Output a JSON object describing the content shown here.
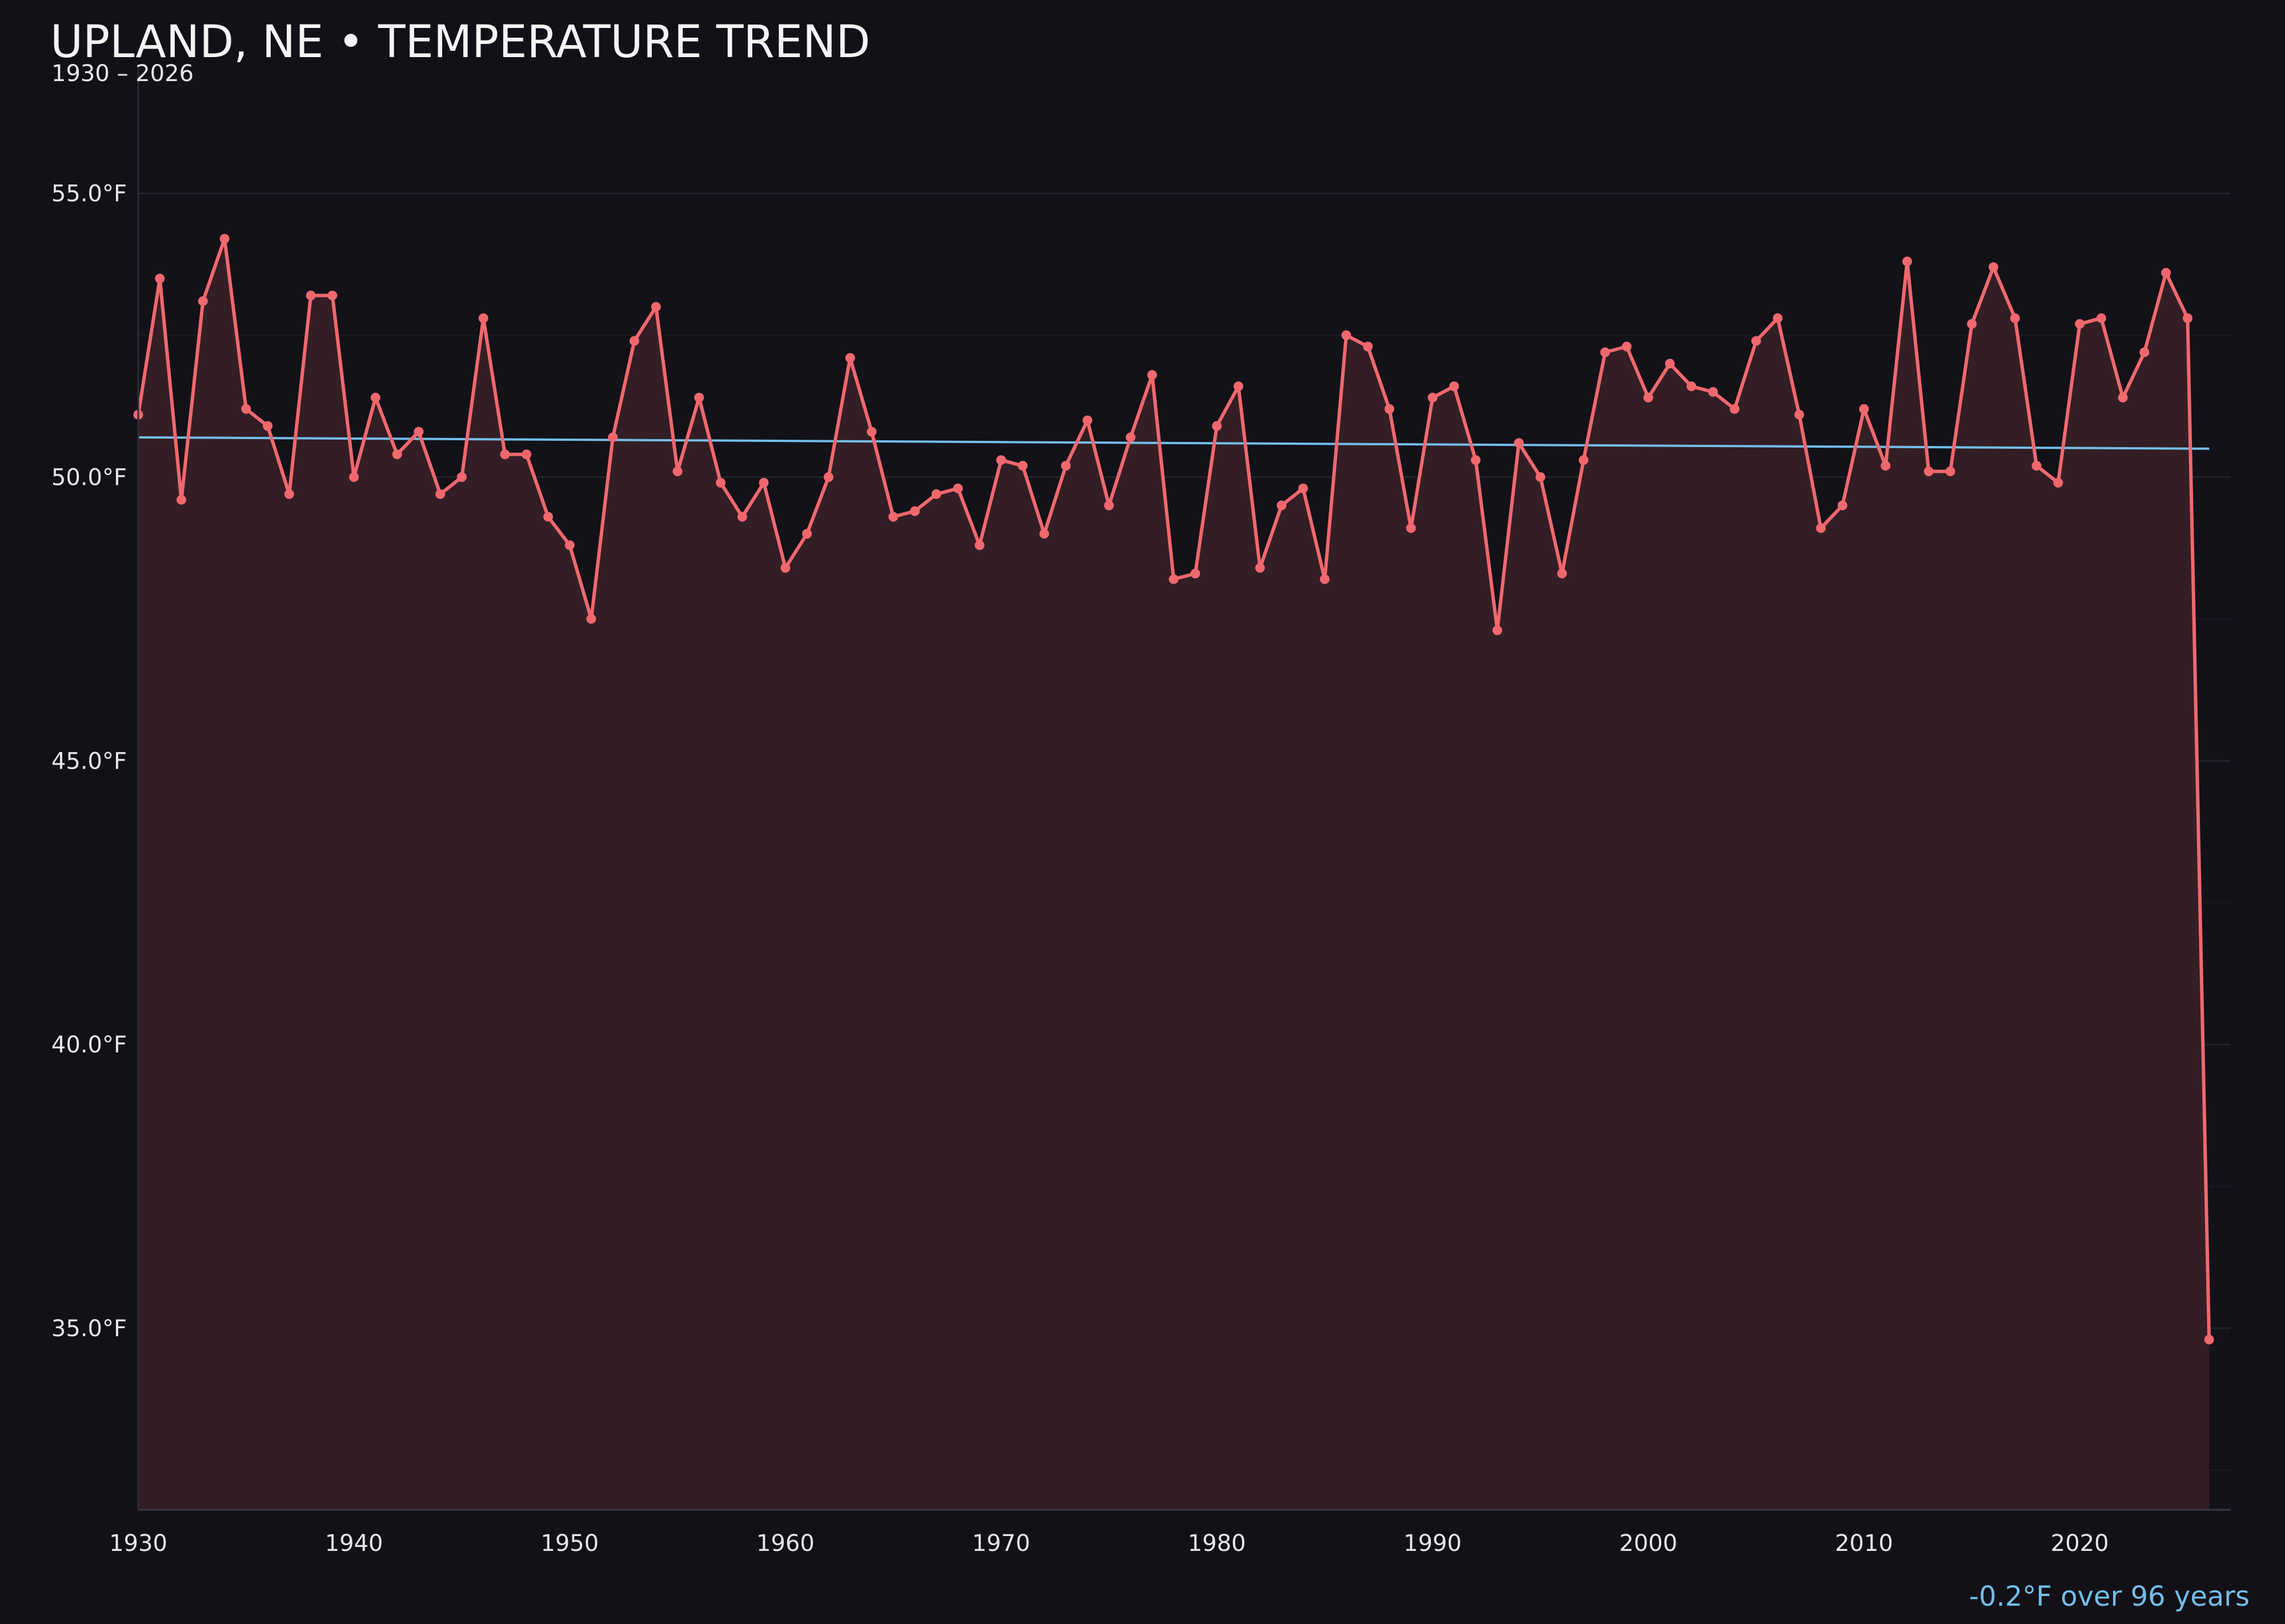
{
  "colors": {
    "background": "#121117",
    "plot_background": "#131219",
    "line": "#f0686e",
    "fill": "#341e25",
    "trend": "#74bde8",
    "grid": "#24222a"
  },
  "chart_data": {
    "type": "line",
    "title": "UPLAND, NE • TEMPERATURE TREND",
    "subtitle": "1930 – 2026",
    "xlabel": "",
    "ylabel": "",
    "xlim": [
      1930,
      2027
    ],
    "ylim": [
      31.8,
      57.2
    ],
    "x_ticks": [
      1930,
      1940,
      1950,
      1960,
      1970,
      1980,
      1990,
      2000,
      2010,
      2020
    ],
    "x_tick_labels": [
      "1930",
      "1940",
      "1950",
      "1960",
      "1970",
      "1980",
      "1990",
      "2000",
      "2010",
      "2020"
    ],
    "y_ticks": [
      35,
      40,
      45,
      50,
      55
    ],
    "y_tick_labels": [
      "35.0°F",
      "40.0°F",
      "45.0°F",
      "50.0°F",
      "55.0°F"
    ],
    "grid": true,
    "series": [
      {
        "x": [
          1930,
          1931,
          1932,
          1933,
          1934,
          1935,
          1936,
          1937,
          1938,
          1939,
          1940,
          1941,
          1942,
          1943,
          1944,
          1945,
          1946,
          1947,
          1948,
          1949,
          1950,
          1951,
          1952,
          1953,
          1954,
          1955,
          1956,
          1957,
          1958,
          1959,
          1960,
          1961,
          1962,
          1963,
          1964,
          1965,
          1966,
          1967,
          1968,
          1969,
          1970,
          1971,
          1972,
          1973,
          1974,
          1975,
          1976,
          1977,
          1978,
          1979,
          1980,
          1981,
          1982,
          1983,
          1984,
          1985,
          1986,
          1987,
          1988,
          1989,
          1990,
          1991,
          1992,
          1993,
          1994,
          1995,
          1996,
          1997,
          1998,
          1999,
          2000,
          2001,
          2002,
          2003,
          2004,
          2005,
          2006,
          2007,
          2008,
          2009,
          2010,
          2011,
          2012,
          2013,
          2014,
          2015,
          2016,
          2017,
          2018,
          2019,
          2020,
          2021,
          2022,
          2023,
          2024,
          2025,
          2026
        ],
        "values": [
          51.1,
          53.5,
          49.6,
          53.1,
          54.2,
          51.2,
          50.9,
          49.7,
          53.2,
          53.2,
          50.0,
          51.4,
          50.4,
          50.8,
          49.7,
          50.0,
          52.8,
          50.4,
          50.4,
          49.3,
          48.8,
          47.5,
          50.7,
          52.4,
          53.0,
          50.1,
          51.4,
          49.9,
          49.3,
          49.9,
          48.4,
          49.0,
          50.0,
          52.1,
          50.8,
          49.3,
          49.4,
          49.7,
          49.8,
          48.8,
          50.3,
          50.2,
          49.0,
          50.2,
          51.0,
          49.5,
          50.7,
          51.8,
          48.2,
          48.3,
          50.9,
          51.6,
          48.4,
          49.5,
          49.8,
          48.2,
          52.5,
          52.3,
          51.2,
          49.1,
          51.4,
          51.6,
          50.3,
          47.3,
          50.6,
          50.0,
          48.3,
          50.3,
          52.2,
          52.3,
          51.4,
          52.0,
          51.6,
          51.5,
          51.2,
          52.4,
          52.8,
          51.1,
          49.1,
          49.5,
          51.2,
          50.2,
          53.8,
          50.1,
          50.1,
          52.7,
          53.7,
          52.8,
          50.2,
          49.9,
          52.7,
          52.8,
          51.4,
          52.2,
          53.6,
          52.8,
          34.8
        ]
      }
    ],
    "trend": {
      "start": [
        1930,
        50.7
      ],
      "end": [
        2026,
        50.5
      ]
    },
    "annotation": "-0.2°F over 96 years"
  }
}
